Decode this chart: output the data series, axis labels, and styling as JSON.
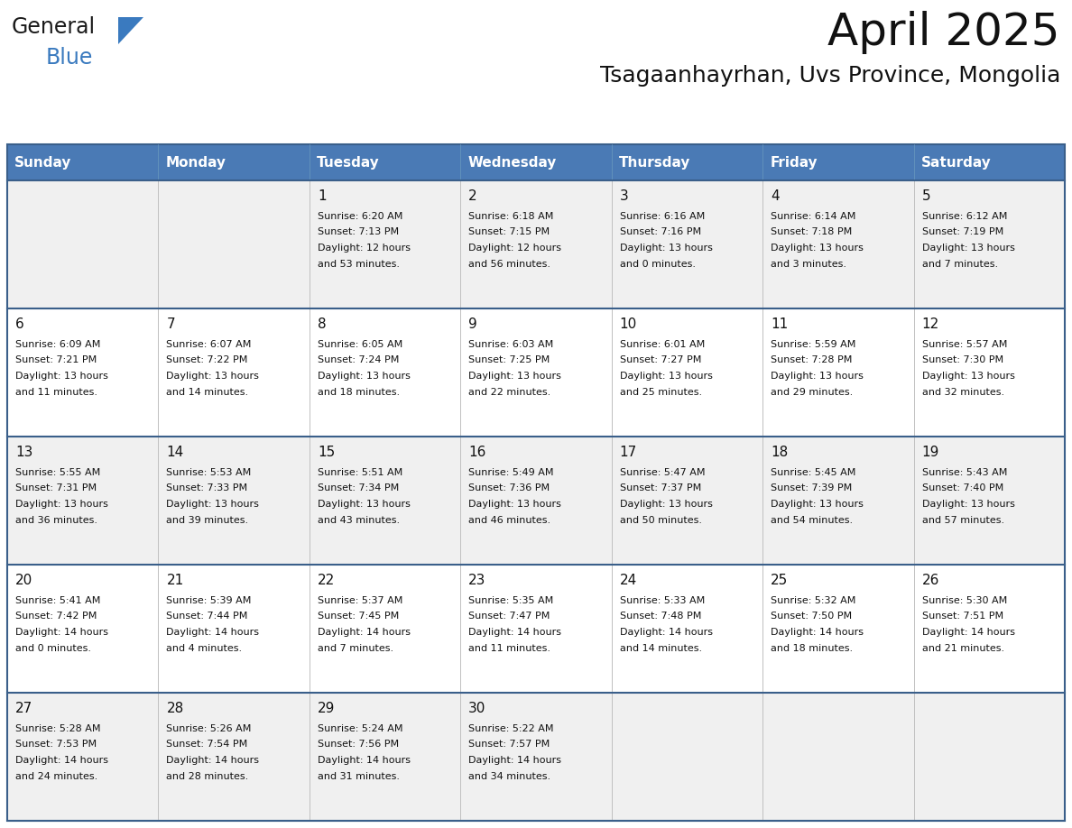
{
  "title": "April 2025",
  "subtitle": "Tsagaanhayrhan, Uvs Province, Mongolia",
  "header_color": "#4a7ab5",
  "header_text_color": "#ffffff",
  "cell_bg_odd": "#f0f0f0",
  "cell_bg_even": "#ffffff",
  "border_color": "#3a5f8a",
  "cell_line_color": "#c0c0c0",
  "day_names": [
    "Sunday",
    "Monday",
    "Tuesday",
    "Wednesday",
    "Thursday",
    "Friday",
    "Saturday"
  ],
  "days_data": [
    {
      "day": 1,
      "col": 2,
      "row": 0,
      "sunrise": "6:20 AM",
      "sunset": "7:13 PM",
      "daylight_h": "12 hours",
      "daylight_m": "and 53 minutes."
    },
    {
      "day": 2,
      "col": 3,
      "row": 0,
      "sunrise": "6:18 AM",
      "sunset": "7:15 PM",
      "daylight_h": "12 hours",
      "daylight_m": "and 56 minutes."
    },
    {
      "day": 3,
      "col": 4,
      "row": 0,
      "sunrise": "6:16 AM",
      "sunset": "7:16 PM",
      "daylight_h": "13 hours",
      "daylight_m": "and 0 minutes."
    },
    {
      "day": 4,
      "col": 5,
      "row": 0,
      "sunrise": "6:14 AM",
      "sunset": "7:18 PM",
      "daylight_h": "13 hours",
      "daylight_m": "and 3 minutes."
    },
    {
      "day": 5,
      "col": 6,
      "row": 0,
      "sunrise": "6:12 AM",
      "sunset": "7:19 PM",
      "daylight_h": "13 hours",
      "daylight_m": "and 7 minutes."
    },
    {
      "day": 6,
      "col": 0,
      "row": 1,
      "sunrise": "6:09 AM",
      "sunset": "7:21 PM",
      "daylight_h": "13 hours",
      "daylight_m": "and 11 minutes."
    },
    {
      "day": 7,
      "col": 1,
      "row": 1,
      "sunrise": "6:07 AM",
      "sunset": "7:22 PM",
      "daylight_h": "13 hours",
      "daylight_m": "and 14 minutes."
    },
    {
      "day": 8,
      "col": 2,
      "row": 1,
      "sunrise": "6:05 AM",
      "sunset": "7:24 PM",
      "daylight_h": "13 hours",
      "daylight_m": "and 18 minutes."
    },
    {
      "day": 9,
      "col": 3,
      "row": 1,
      "sunrise": "6:03 AM",
      "sunset": "7:25 PM",
      "daylight_h": "13 hours",
      "daylight_m": "and 22 minutes."
    },
    {
      "day": 10,
      "col": 4,
      "row": 1,
      "sunrise": "6:01 AM",
      "sunset": "7:27 PM",
      "daylight_h": "13 hours",
      "daylight_m": "and 25 minutes."
    },
    {
      "day": 11,
      "col": 5,
      "row": 1,
      "sunrise": "5:59 AM",
      "sunset": "7:28 PM",
      "daylight_h": "13 hours",
      "daylight_m": "and 29 minutes."
    },
    {
      "day": 12,
      "col": 6,
      "row": 1,
      "sunrise": "5:57 AM",
      "sunset": "7:30 PM",
      "daylight_h": "13 hours",
      "daylight_m": "and 32 minutes."
    },
    {
      "day": 13,
      "col": 0,
      "row": 2,
      "sunrise": "5:55 AM",
      "sunset": "7:31 PM",
      "daylight_h": "13 hours",
      "daylight_m": "and 36 minutes."
    },
    {
      "day": 14,
      "col": 1,
      "row": 2,
      "sunrise": "5:53 AM",
      "sunset": "7:33 PM",
      "daylight_h": "13 hours",
      "daylight_m": "and 39 minutes."
    },
    {
      "day": 15,
      "col": 2,
      "row": 2,
      "sunrise": "5:51 AM",
      "sunset": "7:34 PM",
      "daylight_h": "13 hours",
      "daylight_m": "and 43 minutes."
    },
    {
      "day": 16,
      "col": 3,
      "row": 2,
      "sunrise": "5:49 AM",
      "sunset": "7:36 PM",
      "daylight_h": "13 hours",
      "daylight_m": "and 46 minutes."
    },
    {
      "day": 17,
      "col": 4,
      "row": 2,
      "sunrise": "5:47 AM",
      "sunset": "7:37 PM",
      "daylight_h": "13 hours",
      "daylight_m": "and 50 minutes."
    },
    {
      "day": 18,
      "col": 5,
      "row": 2,
      "sunrise": "5:45 AM",
      "sunset": "7:39 PM",
      "daylight_h": "13 hours",
      "daylight_m": "and 54 minutes."
    },
    {
      "day": 19,
      "col": 6,
      "row": 2,
      "sunrise": "5:43 AM",
      "sunset": "7:40 PM",
      "daylight_h": "13 hours",
      "daylight_m": "and 57 minutes."
    },
    {
      "day": 20,
      "col": 0,
      "row": 3,
      "sunrise": "5:41 AM",
      "sunset": "7:42 PM",
      "daylight_h": "14 hours",
      "daylight_m": "and 0 minutes."
    },
    {
      "day": 21,
      "col": 1,
      "row": 3,
      "sunrise": "5:39 AM",
      "sunset": "7:44 PM",
      "daylight_h": "14 hours",
      "daylight_m": "and 4 minutes."
    },
    {
      "day": 22,
      "col": 2,
      "row": 3,
      "sunrise": "5:37 AM",
      "sunset": "7:45 PM",
      "daylight_h": "14 hours",
      "daylight_m": "and 7 minutes."
    },
    {
      "day": 23,
      "col": 3,
      "row": 3,
      "sunrise": "5:35 AM",
      "sunset": "7:47 PM",
      "daylight_h": "14 hours",
      "daylight_m": "and 11 minutes."
    },
    {
      "day": 24,
      "col": 4,
      "row": 3,
      "sunrise": "5:33 AM",
      "sunset": "7:48 PM",
      "daylight_h": "14 hours",
      "daylight_m": "and 14 minutes."
    },
    {
      "day": 25,
      "col": 5,
      "row": 3,
      "sunrise": "5:32 AM",
      "sunset": "7:50 PM",
      "daylight_h": "14 hours",
      "daylight_m": "and 18 minutes."
    },
    {
      "day": 26,
      "col": 6,
      "row": 3,
      "sunrise": "5:30 AM",
      "sunset": "7:51 PM",
      "daylight_h": "14 hours",
      "daylight_m": "and 21 minutes."
    },
    {
      "day": 27,
      "col": 0,
      "row": 4,
      "sunrise": "5:28 AM",
      "sunset": "7:53 PM",
      "daylight_h": "14 hours",
      "daylight_m": "and 24 minutes."
    },
    {
      "day": 28,
      "col": 1,
      "row": 4,
      "sunrise": "5:26 AM",
      "sunset": "7:54 PM",
      "daylight_h": "14 hours",
      "daylight_m": "and 28 minutes."
    },
    {
      "day": 29,
      "col": 2,
      "row": 4,
      "sunrise": "5:24 AM",
      "sunset": "7:56 PM",
      "daylight_h": "14 hours",
      "daylight_m": "and 31 minutes."
    },
    {
      "day": 30,
      "col": 3,
      "row": 4,
      "sunrise": "5:22 AM",
      "sunset": "7:57 PM",
      "daylight_h": "14 hours",
      "daylight_m": "and 34 minutes."
    }
  ],
  "num_rows": 5,
  "num_cols": 7,
  "logo_text_general": "General",
  "logo_text_blue": "Blue",
  "logo_color_general": "#1a1a1a",
  "logo_color_blue": "#3a7abf",
  "logo_triangle_color": "#3a7abf",
  "title_fontsize": 36,
  "subtitle_fontsize": 18,
  "header_fontsize": 11,
  "day_num_fontsize": 11,
  "cell_text_fontsize": 8
}
